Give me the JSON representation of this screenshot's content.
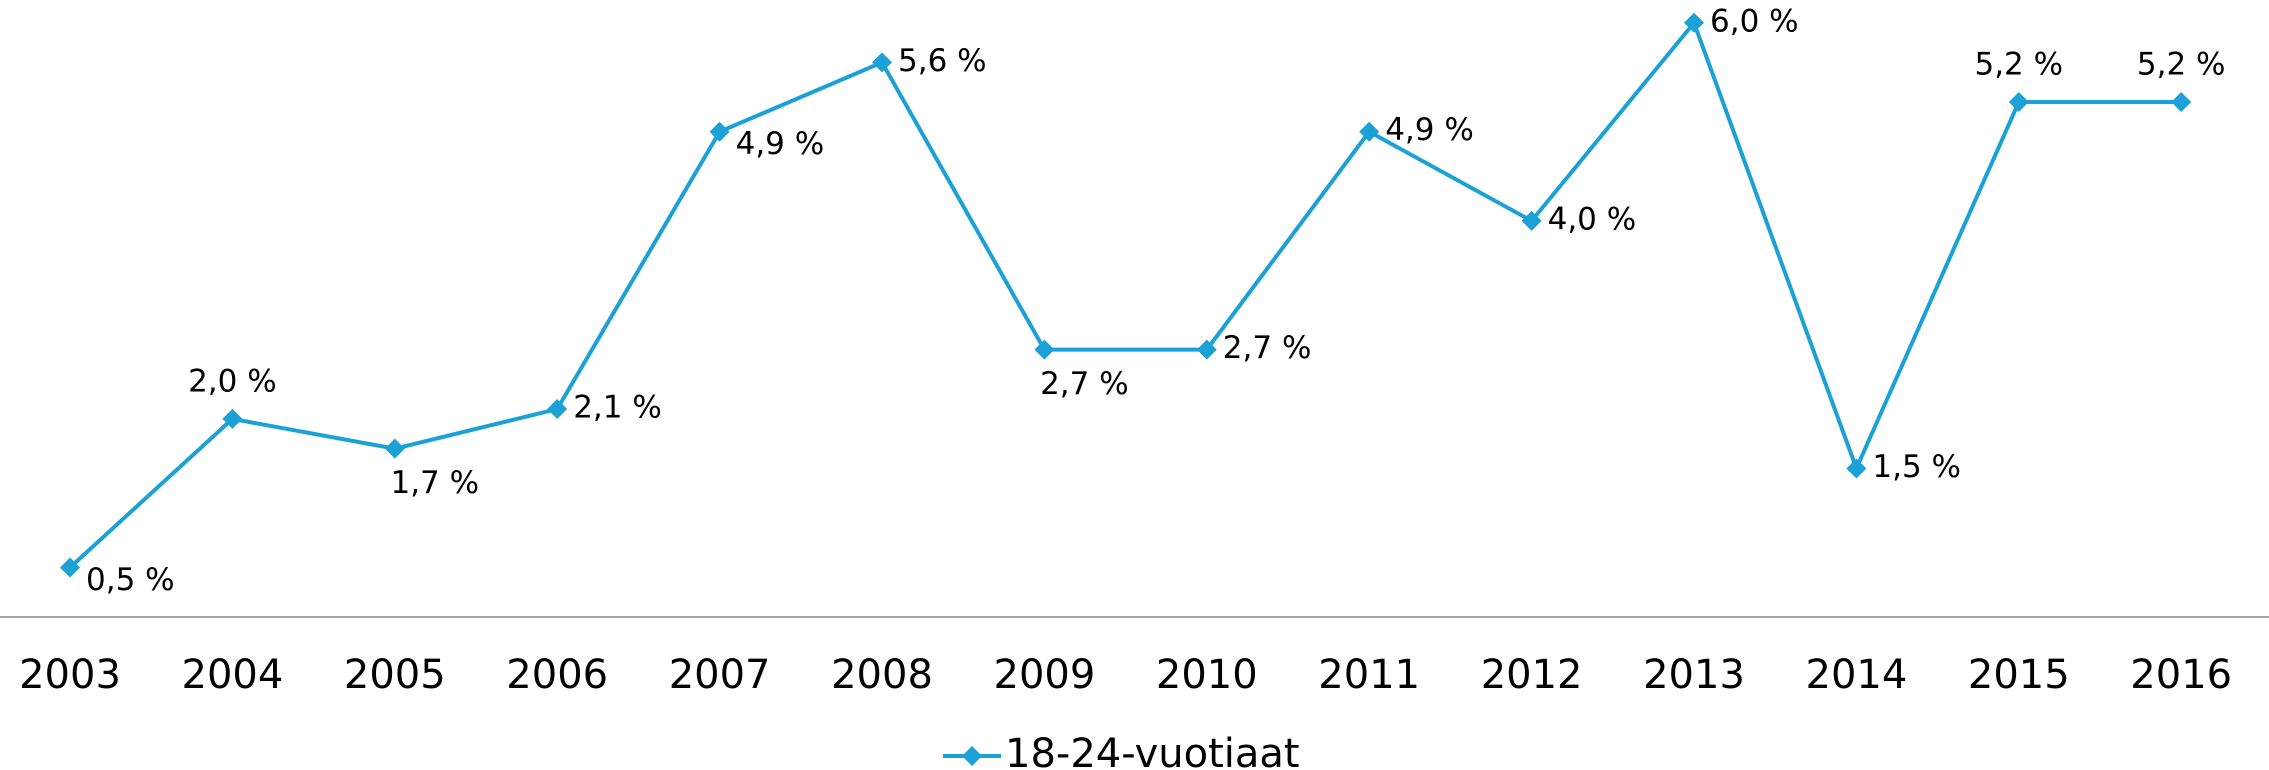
{
  "chart_data": {
    "type": "line",
    "categories": [
      "2003",
      "2004",
      "2005",
      "2006",
      "2007",
      "2008",
      "2009",
      "2010",
      "2011",
      "2012",
      "2013",
      "2014",
      "2015",
      "2016"
    ],
    "series": [
      {
        "name": "18-24-vuotiaat",
        "color": "#1ba1d6",
        "values": [
          0.5,
          2.0,
          1.7,
          2.1,
          4.9,
          5.6,
          2.7,
          2.7,
          4.9,
          4.0,
          6.0,
          1.5,
          5.2,
          5.2
        ],
        "value_labels": [
          "0,5 %",
          "2,0 %",
          "1,7 %",
          "2,1 %",
          "4,9 %",
          "5,6 %",
          "2,7 %",
          "2,7 %",
          "4,9 %",
          "4,0 %",
          "6,0 %",
          "1,5 %",
          "5,2 %",
          "5,2 %"
        ]
      }
    ],
    "ylim": [
      0,
      6.2
    ],
    "legend": "bottom"
  }
}
